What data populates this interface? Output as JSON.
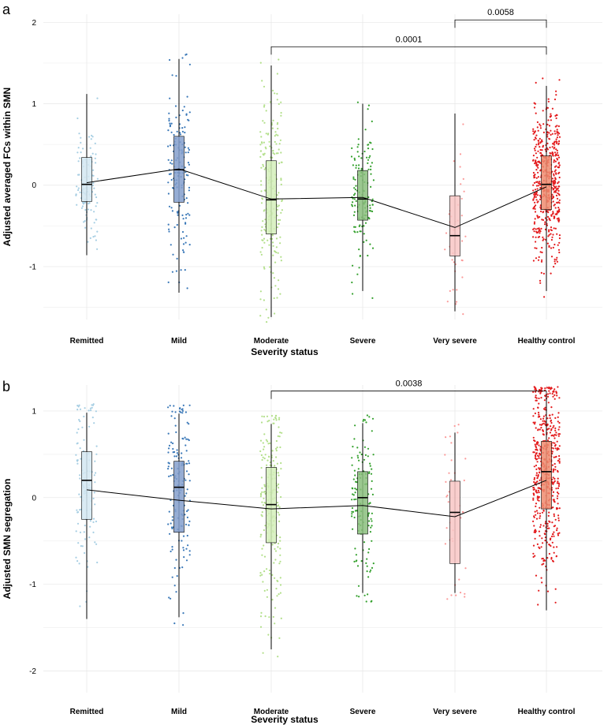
{
  "chart_data": [
    {
      "type": "box",
      "panel": "a",
      "xlabel": "Severity status",
      "ylabel": "Adjusted averaged FCs within SMN",
      "ylim": [
        -1.65,
        2.1
      ],
      "yticks": [
        -1,
        0,
        1,
        2
      ],
      "ytick_labels": [
        "-1",
        "0",
        "1",
        "2"
      ],
      "categories": [
        "Remitted",
        "Mild",
        "Moderate",
        "Severe",
        "Very severe",
        "Healthy control"
      ],
      "colors": [
        "#a6cee3",
        "#3a78b8",
        "#b2df8a",
        "#33a02c",
        "#fb9a99",
        "#e31a1c"
      ],
      "box_colors": [
        "#d4e7f2",
        "#849fcc",
        "#d4eeba",
        "#89be7c",
        "#f8c6c4",
        "#ef8b6f"
      ],
      "n_points": [
        110,
        150,
        210,
        130,
        40,
        520
      ],
      "box": [
        {
          "min": -0.86,
          "q1": -0.2,
          "median": 0.01,
          "q3": 0.34,
          "max": 1.12
        },
        {
          "min": -1.32,
          "q1": -0.21,
          "median": 0.19,
          "q3": 0.6,
          "max": 1.55
        },
        {
          "min": -1.62,
          "q1": -0.6,
          "median": -0.18,
          "q3": 0.3,
          "max": 1.47
        },
        {
          "min": -1.3,
          "q1": -0.43,
          "median": -0.17,
          "q3": 0.18,
          "max": 1.0
        },
        {
          "min": -1.55,
          "q1": -0.87,
          "median": -0.62,
          "q3": -0.13,
          "max": 0.88
        },
        {
          "min": -1.3,
          "q1": -0.3,
          "median": 0.01,
          "q3": 0.36,
          "max": 1.22
        }
      ],
      "means": [
        0.03,
        0.2,
        -0.17,
        -0.15,
        -0.52,
        -0.02
      ],
      "brackets": [
        {
          "from": "Very severe",
          "to": "Healthy control",
          "y": 2.03,
          "label": "0.0058"
        },
        {
          "from": "Moderate",
          "to": "Healthy control",
          "y": 1.7,
          "label": "0.0001"
        }
      ]
    },
    {
      "type": "box",
      "panel": "b",
      "xlabel": "Severity status",
      "ylabel": "Adjusted SMN  segregation",
      "ylim": [
        -2.25,
        1.3
      ],
      "yticks": [
        -2,
        -1,
        0,
        1
      ],
      "ytick_labels": [
        "-2",
        "-1",
        "0",
        "1"
      ],
      "categories": [
        "Remitted",
        "Mild",
        "Moderate",
        "Severe",
        "Very severe",
        "Healthy control"
      ],
      "colors": [
        "#a6cee3",
        "#3a78b8",
        "#b2df8a",
        "#33a02c",
        "#fb9a99",
        "#e31a1c"
      ],
      "box_colors": [
        "#d4e7f2",
        "#849fcc",
        "#d4eeba",
        "#89be7c",
        "#f8c6c4",
        "#ef8b6f"
      ],
      "n_points": [
        110,
        150,
        210,
        130,
        40,
        520
      ],
      "box": [
        {
          "min": -1.4,
          "q1": -0.25,
          "median": 0.2,
          "q3": 0.53,
          "max": 0.98
        },
        {
          "min": -1.38,
          "q1": -0.4,
          "median": 0.12,
          "q3": 0.42,
          "max": 0.97
        },
        {
          "min": -1.75,
          "q1": -0.52,
          "median": -0.08,
          "q3": 0.35,
          "max": 0.85
        },
        {
          "min": -1.1,
          "q1": -0.42,
          "median": 0.0,
          "q3": 0.3,
          "max": 0.86
        },
        {
          "min": -1.1,
          "q1": -0.76,
          "median": -0.17,
          "q3": 0.19,
          "max": 0.75
        },
        {
          "min": -1.3,
          "q1": -0.13,
          "median": 0.3,
          "q3": 0.65,
          "max": 1.18
        }
      ],
      "means": [
        0.09,
        -0.03,
        -0.13,
        -0.09,
        -0.22,
        0.2
      ],
      "brackets": [
        {
          "from": "Moderate",
          "to": "Healthy control",
          "y": 1.23,
          "label": "0.0038"
        }
      ]
    }
  ]
}
